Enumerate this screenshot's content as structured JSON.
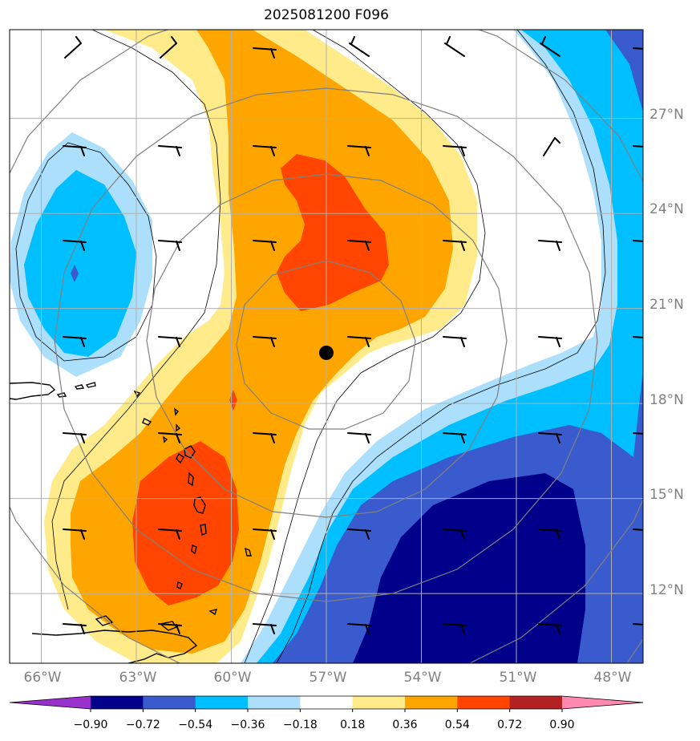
{
  "title": "2025081200 F096",
  "colors": {
    "n090": "#00008b",
    "n072": "#3a5bcd",
    "n054": "#00bfff",
    "n036": "#abdffc",
    "neutral": "#ffffff",
    "p018": "#ffeb8a",
    "p036": "#ffa500",
    "p054": "#ff4500",
    "p072": "#b22222",
    "p090": "#ff88b0",
    "below": "#9932cc",
    "grid": "#b0b0b0",
    "circle": "#808080",
    "coast": "#000000",
    "axis_label": "#808080"
  },
  "map": {
    "lon_range": [
      -67.0,
      -47.0
    ],
    "lat_range": [
      9.8,
      29.8
    ],
    "center_marker": {
      "lon": -57.0,
      "lat": 19.6
    },
    "lon_labels": [
      "66°W",
      "63°W",
      "60°W",
      "57°W",
      "54°W",
      "51°W",
      "48°W"
    ],
    "lon_values": [
      -66,
      -63,
      -60,
      -57,
      -54,
      -51,
      -48
    ],
    "lat_labels": [
      "27°N",
      "24°N",
      "21°N",
      "18°N",
      "15°N",
      "12°N"
    ],
    "lat_values": [
      27,
      24,
      21,
      18,
      15,
      12
    ]
  },
  "colorbar": {
    "tick_labels": [
      "−0.90",
      "−0.72",
      "−0.54",
      "−0.36",
      "−0.18",
      "0.18",
      "0.36",
      "0.54",
      "0.72",
      "0.90"
    ],
    "tick_values": [
      -0.9,
      -0.72,
      -0.54,
      -0.36,
      -0.18,
      0.18,
      0.36,
      0.54,
      0.72,
      0.9
    ],
    "bin_colors": [
      "#00008b",
      "#3a5bcd",
      "#00bfff",
      "#abdffc",
      "#ffffff",
      "#ffeb8a",
      "#ffa500",
      "#ff4500",
      "#b22222"
    ],
    "below_color": "#9932cc",
    "above_color": "#ff88b0"
  }
}
